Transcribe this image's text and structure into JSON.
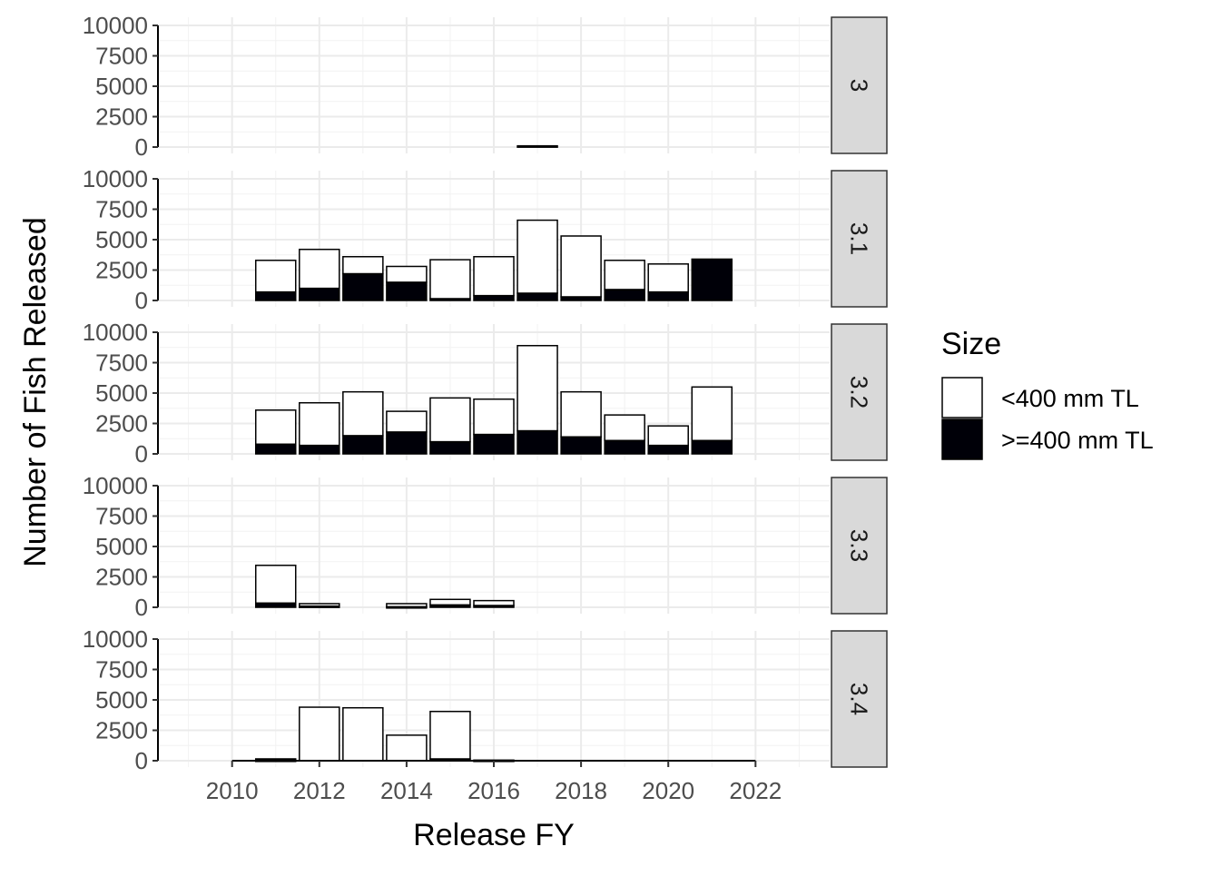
{
  "chart_data": {
    "type": "bar",
    "stacked": true,
    "faceted": true,
    "xlabel": "Release FY",
    "ylabel": "Number of Fish Released",
    "xlim": [
      2008.3,
      2023.7
    ],
    "ylim": [
      0,
      10000
    ],
    "x_ticks": [
      2010,
      2012,
      2014,
      2016,
      2018,
      2020,
      2022
    ],
    "y_ticks": [
      0,
      2500,
      5000,
      7500,
      10000
    ],
    "grid": true,
    "legend": {
      "title": "Size",
      "position": "right",
      "entries": [
        {
          "label": "<400 mm TL",
          "color": "#ffffff"
        },
        {
          "label": ">=400 mm TL",
          "color": "#000008"
        }
      ]
    },
    "facets": [
      {
        "label": "3",
        "x": [
          2017
        ],
        "small": [
          0
        ],
        "large": [
          100
        ]
      },
      {
        "label": "3.1",
        "x": [
          2011,
          2012,
          2013,
          2014,
          2015,
          2016,
          2017,
          2018,
          2019,
          2020,
          2021
        ],
        "small": [
          2600,
          3200,
          1400,
          1300,
          3200,
          3200,
          6000,
          5000,
          2400,
          2300,
          0
        ],
        "large": [
          700,
          1000,
          2200,
          1500,
          150,
          400,
          600,
          300,
          900,
          700,
          3400
        ]
      },
      {
        "label": "3.2",
        "x": [
          2011,
          2012,
          2013,
          2014,
          2015,
          2016,
          2017,
          2018,
          2019,
          2020,
          2021
        ],
        "small": [
          2800,
          3500,
          3600,
          1700,
          3600,
          2900,
          7000,
          3700,
          2100,
          1600,
          4400
        ],
        "large": [
          800,
          700,
          1500,
          1800,
          1000,
          1600,
          1900,
          1400,
          1100,
          700,
          1100
        ]
      },
      {
        "label": "3.3",
        "x": [
          2011,
          2012,
          2014,
          2015,
          2016
        ],
        "small": [
          3100,
          200,
          250,
          450,
          400
        ],
        "large": [
          350,
          100,
          50,
          200,
          150
        ]
      },
      {
        "label": "3.4",
        "x": [
          2011,
          2012,
          2013,
          2014,
          2015,
          2016
        ],
        "small": [
          100,
          4400,
          4350,
          2100,
          3900,
          50
        ],
        "large": [
          50,
          0,
          0,
          0,
          150,
          0
        ]
      }
    ]
  }
}
